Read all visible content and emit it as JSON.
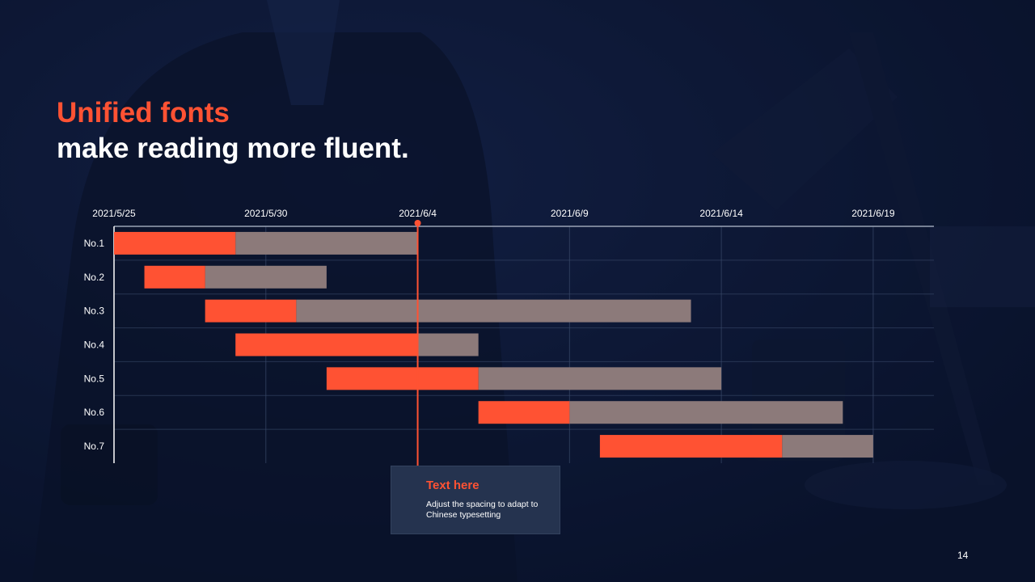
{
  "slide": {
    "title_line1": "Unified fonts",
    "title_line2": "make reading more fluent.",
    "callout_title": "Text here",
    "callout_body": "Adjust the spacing to adapt to Chinese typesetting",
    "page_number": "14"
  },
  "colors": {
    "accent": "#ff5233",
    "remaining": "#8c7a7a",
    "background": "#0b1530"
  },
  "chart_data": {
    "type": "gantt",
    "x_ticks": [
      "2021/5/25",
      "2021/5/30",
      "2021/6/4",
      "2021/6/9",
      "2021/6/14",
      "2021/6/19"
    ],
    "x_range": [
      "2021/5/25",
      "2021/6/21"
    ],
    "today_marker": "2021/6/4",
    "grid": true,
    "tasks": [
      {
        "label": "No.1",
        "start": "2021/5/25",
        "progress_end": "2021/5/29",
        "end": "2021/6/4"
      },
      {
        "label": "No.2",
        "start": "2021/5/26",
        "progress_end": "2021/5/28",
        "end": "2021/6/1"
      },
      {
        "label": "No.3",
        "start": "2021/5/28",
        "progress_end": "2021/5/31",
        "end": "2021/6/13"
      },
      {
        "label": "No.4",
        "start": "2021/5/29",
        "progress_end": "2021/6/4",
        "end": "2021/6/6"
      },
      {
        "label": "No.5",
        "start": "2021/6/1",
        "progress_end": "2021/6/6",
        "end": "2021/6/14"
      },
      {
        "label": "No.6",
        "start": "2021/6/6",
        "progress_end": "2021/6/9",
        "end": "2021/6/18"
      },
      {
        "label": "No.7",
        "start": "2021/6/10",
        "progress_end": "2021/6/16",
        "end": "2021/6/19"
      }
    ]
  }
}
